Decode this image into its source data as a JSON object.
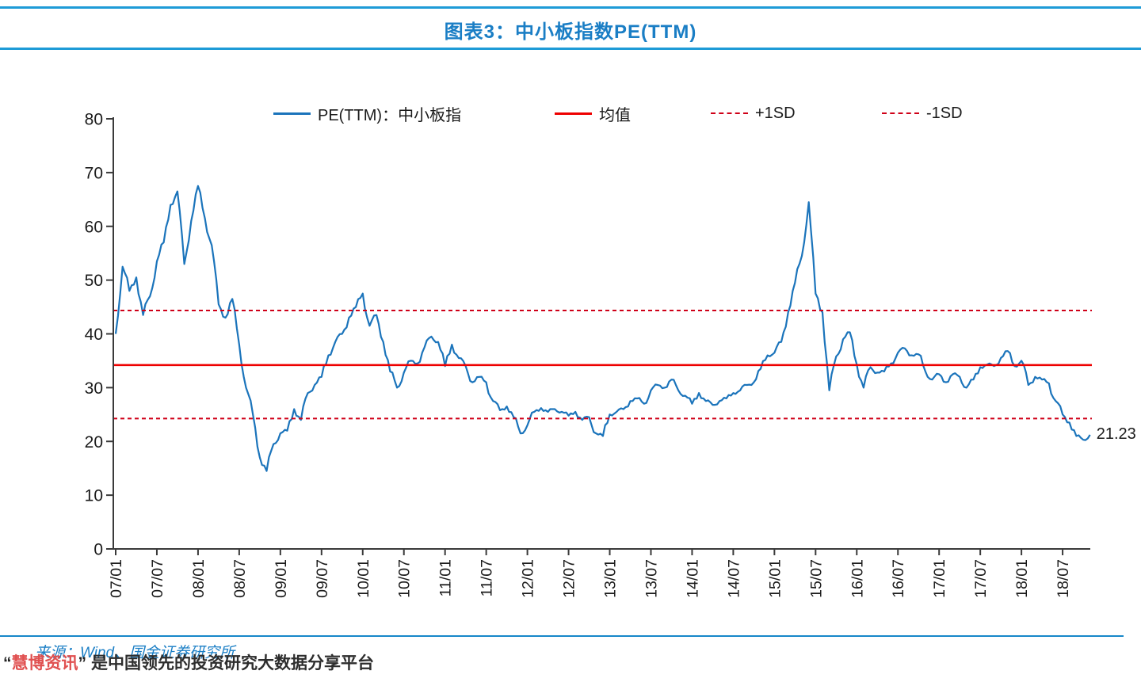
{
  "header": {
    "title": "图表3：中小板指数PE(TTM)"
  },
  "chart_data": {
    "type": "line",
    "title": "图表3：中小板指数PE(TTM)",
    "x_unit": "month",
    "x_start_label": "07/01",
    "xticks": [
      "07/01",
      "07/07",
      "08/01",
      "08/07",
      "09/01",
      "09/07",
      "10/01",
      "10/07",
      "11/01",
      "11/07",
      "12/01",
      "12/07",
      "13/01",
      "13/07",
      "14/01",
      "14/07",
      "15/01",
      "15/07",
      "16/01",
      "16/07",
      "17/01",
      "17/07",
      "18/01",
      "18/07"
    ],
    "yticks": [
      0,
      10,
      20,
      30,
      40,
      50,
      60,
      70,
      80
    ],
    "ylim": [
      0,
      80
    ],
    "grid": false,
    "legend_position": "top",
    "series": [
      {
        "name": "PE(TTM)：中小板指",
        "color": "#1b74bb",
        "values": [
          40,
          52.5,
          48,
          50.5,
          43.5,
          47,
          53.5,
          57,
          64,
          66.5,
          53,
          61,
          67.5,
          61.5,
          56.5,
          45.5,
          43,
          46.5,
          38,
          30,
          25,
          17,
          14.5,
          19.5,
          21.5,
          22,
          26,
          24,
          29,
          30.5,
          32,
          36,
          38.5,
          40,
          43,
          45,
          47.5,
          41.5,
          43.5,
          38.5,
          33,
          30,
          32.8,
          35,
          34.5,
          37.5,
          39.5,
          38.5,
          34,
          38,
          35.5,
          34,
          31,
          32,
          31,
          27.5,
          25.8,
          26.5,
          24.5,
          21.5,
          23,
          25.5,
          26.2,
          25.5,
          26,
          25.5,
          24.8,
          25.5,
          24,
          24.5,
          21.5,
          21,
          25,
          25.5,
          26,
          27.5,
          28,
          27,
          29.5,
          30.5,
          30,
          31.5,
          29.5,
          28.5,
          27,
          29,
          27.5,
          26.8,
          27.5,
          28,
          29,
          29.5,
          30.5,
          31,
          33.5,
          36,
          36.5,
          38.5,
          44,
          49.5,
          54.5,
          64.5,
          47.5,
          44,
          29.5,
          35.8,
          39,
          40.3,
          34.3,
          30,
          33.8,
          32.8,
          33,
          34.5,
          36.5,
          37.3,
          36,
          36.2,
          33,
          31.5,
          32.5,
          31,
          32.5,
          32,
          30,
          31.5,
          33.8,
          34.3,
          34,
          35.5,
          36.8,
          34,
          35,
          30.5,
          32,
          31.5,
          30.8,
          27.5,
          25,
          23.5,
          21,
          20.3,
          21.23
        ]
      }
    ],
    "ref_lines": [
      {
        "name": "均值",
        "value": 34.2,
        "style": "solid",
        "color": "#ee0000"
      },
      {
        "name": "+1SD",
        "value": 44.35,
        "style": "dashed",
        "color": "#cf0018"
      },
      {
        "name": "-1SD",
        "value": 24.25,
        "style": "dashed",
        "color": "#cf0018"
      }
    ],
    "end_label": "21.23"
  },
  "footer": {
    "source": "来源：Wind、国金证券研究所",
    "watermark": {
      "quote_open": "“",
      "brand": "慧博资讯",
      "quote_close": "”",
      "tagline": "是中国领先的投资研究大数据分享平台"
    }
  }
}
